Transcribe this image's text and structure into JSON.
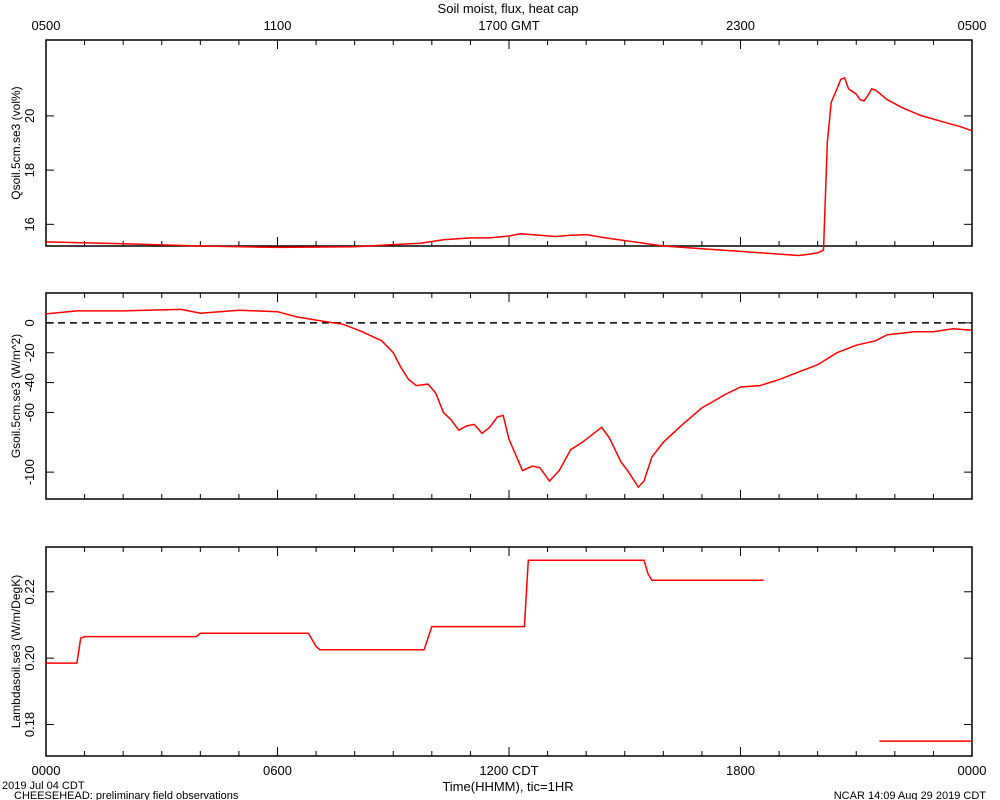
{
  "chart_data": {
    "title": "Soil moist, flux, heat cap",
    "type": "line",
    "top_axis": {
      "ticks": [
        "0500",
        "1100",
        "1700 GMT",
        "2300",
        "0500"
      ],
      "positions_hr": [
        0,
        6,
        12,
        18,
        24
      ]
    },
    "bottom_axis": {
      "ticks": [
        "0000",
        "0600",
        "1200 CDT",
        "1800",
        "0000"
      ],
      "positions_hr": [
        0,
        6,
        12,
        18,
        24
      ],
      "xlabel": "Time(HHMM), tic=1HR",
      "range_hr": [
        0,
        24
      ]
    },
    "series_color": "#ff0000",
    "panels": [
      {
        "ylabel": "Qsoil.5cm.se3 (vol%)",
        "ylim": [
          15.2,
          22.8
        ],
        "yticks": [
          16,
          18,
          20
        ],
        "ytick_labels": [
          "16",
          "18",
          "20"
        ],
        "points": [
          [
            0,
            15.35
          ],
          [
            2,
            15.28
          ],
          [
            4,
            15.2
          ],
          [
            6,
            15.15
          ],
          [
            8,
            15.17
          ],
          [
            9,
            15.25
          ],
          [
            9.7,
            15.3
          ],
          [
            10.3,
            15.43
          ],
          [
            11,
            15.5
          ],
          [
            11.5,
            15.5
          ],
          [
            12,
            15.57
          ],
          [
            12.3,
            15.65
          ],
          [
            12.8,
            15.6
          ],
          [
            13.2,
            15.55
          ],
          [
            13.6,
            15.6
          ],
          [
            14,
            15.62
          ],
          [
            14.5,
            15.5
          ],
          [
            15,
            15.4
          ],
          [
            16,
            15.2
          ],
          [
            17,
            15.1
          ],
          [
            18,
            15.0
          ],
          [
            19,
            14.9
          ],
          [
            19.5,
            14.85
          ],
          [
            19.8,
            14.9
          ],
          [
            20,
            14.95
          ],
          [
            20.15,
            15.05
          ],
          [
            20.25,
            19.0
          ],
          [
            20.35,
            20.5
          ],
          [
            20.5,
            21.0
          ],
          [
            20.6,
            21.35
          ],
          [
            20.7,
            21.4
          ],
          [
            20.8,
            21.0
          ],
          [
            21,
            20.8
          ],
          [
            21.1,
            20.6
          ],
          [
            21.2,
            20.55
          ],
          [
            21.3,
            20.75
          ],
          [
            21.4,
            21.0
          ],
          [
            21.5,
            20.95
          ],
          [
            21.8,
            20.6
          ],
          [
            22.2,
            20.3
          ],
          [
            22.7,
            20.0
          ],
          [
            23.2,
            19.8
          ],
          [
            23.7,
            19.6
          ],
          [
            24,
            19.45
          ]
        ]
      },
      {
        "ylabel": "Gsoil.5cm.se3 (W/m^2)",
        "ylim": [
          -118,
          20
        ],
        "yticks": [
          0,
          -20,
          -40,
          -60,
          -100
        ],
        "ytick_labels": [
          "0",
          "-20",
          "-40",
          "-60",
          "-100"
        ],
        "zero_line": true,
        "points": [
          [
            0,
            6
          ],
          [
            0.8,
            8
          ],
          [
            2,
            8
          ],
          [
            3.5,
            9
          ],
          [
            4,
            6.5
          ],
          [
            5,
            8.5
          ],
          [
            6,
            7.5
          ],
          [
            6.5,
            4
          ],
          [
            7.2,
            1
          ],
          [
            7.7,
            -1
          ],
          [
            8.2,
            -6
          ],
          [
            8.7,
            -12
          ],
          [
            9,
            -20
          ],
          [
            9.2,
            -30
          ],
          [
            9.4,
            -38
          ],
          [
            9.6,
            -42
          ],
          [
            9.9,
            -41
          ],
          [
            10.1,
            -47
          ],
          [
            10.3,
            -60
          ],
          [
            10.5,
            -65
          ],
          [
            10.7,
            -72
          ],
          [
            10.9,
            -69
          ],
          [
            11.1,
            -68
          ],
          [
            11.3,
            -74
          ],
          [
            11.5,
            -70
          ],
          [
            11.7,
            -63
          ],
          [
            11.85,
            -62
          ],
          [
            12,
            -78
          ],
          [
            12.2,
            -90
          ],
          [
            12.35,
            -99
          ],
          [
            12.6,
            -96
          ],
          [
            12.8,
            -97
          ],
          [
            13.05,
            -106
          ],
          [
            13.3,
            -99
          ],
          [
            13.6,
            -85
          ],
          [
            13.9,
            -80
          ],
          [
            14.15,
            -75
          ],
          [
            14.4,
            -70
          ],
          [
            14.6,
            -77
          ],
          [
            14.9,
            -93
          ],
          [
            15.1,
            -100
          ],
          [
            15.35,
            -110
          ],
          [
            15.5,
            -106
          ],
          [
            15.7,
            -90
          ],
          [
            16,
            -80
          ],
          [
            16.5,
            -68
          ],
          [
            17,
            -57
          ],
          [
            17.6,
            -48
          ],
          [
            18,
            -43
          ],
          [
            18.5,
            -42
          ],
          [
            19,
            -38
          ],
          [
            19.5,
            -33
          ],
          [
            20,
            -28
          ],
          [
            20.5,
            -20
          ],
          [
            21,
            -15
          ],
          [
            21.5,
            -12
          ],
          [
            21.8,
            -8
          ],
          [
            22.5,
            -6
          ],
          [
            23,
            -6
          ],
          [
            23.5,
            -4
          ],
          [
            24,
            -5
          ]
        ]
      },
      {
        "ylabel": "Lambdasoil.se3 (W/m/DegK)",
        "ylim": [
          0.1705,
          0.2335
        ],
        "yticks": [
          0.18,
          0.2,
          0.22
        ],
        "ytick_labels": [
          "0.18",
          "0.20",
          "0.22"
        ],
        "segments": [
          [
            [
              0,
              0.1985
            ],
            [
              0.8,
              0.1985
            ],
            [
              0.9,
              0.206
            ],
            [
              1,
              0.2065
            ],
            [
              3.9,
              0.2065
            ],
            [
              4,
              0.2075
            ],
            [
              6.8,
              0.2075
            ],
            [
              7,
              0.2035
            ],
            [
              7.1,
              0.2025
            ],
            [
              9.8,
              0.2025
            ],
            [
              10,
              0.2095
            ],
            [
              12.4,
              0.2095
            ],
            [
              12.5,
              0.2295
            ],
            [
              15.5,
              0.2295
            ],
            [
              15.6,
              0.2255
            ],
            [
              15.7,
              0.2235
            ],
            [
              18.6,
              0.2235
            ]
          ],
          [
            [
              21.6,
              0.175
            ],
            [
              24,
              0.175
            ]
          ]
        ]
      }
    ]
  },
  "footer": {
    "date_label": "2019 Jul 04 CDT",
    "project_label": "CHEESEHEAD: preliminary field observations",
    "stamp_label": "NCAR 14:09 Aug 29 2019 CDT"
  }
}
